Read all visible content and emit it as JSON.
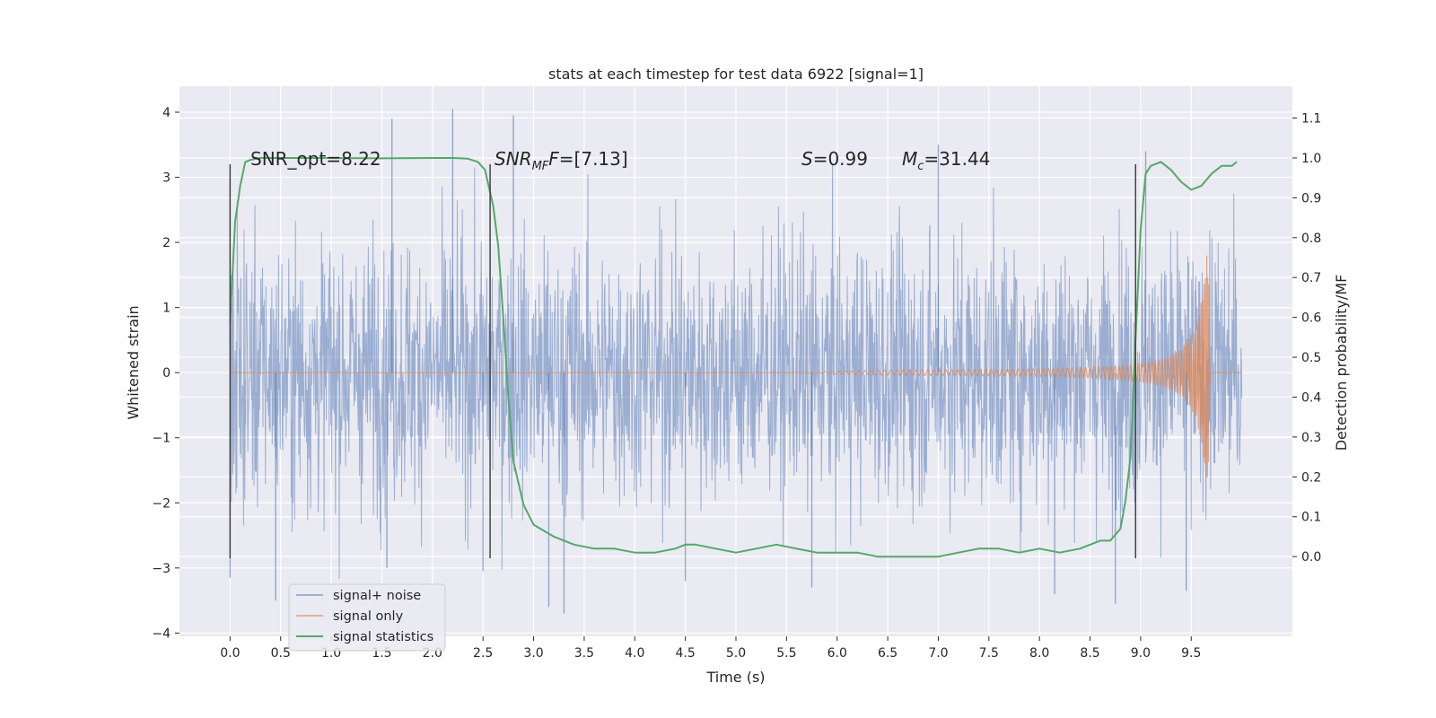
{
  "chart_data": {
    "type": "line",
    "title": "stats at each timestep for test data 6922 [signal=1]",
    "xlabel": "Time (s)",
    "ylabel": "Whitened strain",
    "ylabel_right": "Detection probability/MF",
    "xlim": [
      -0.5,
      10.5
    ],
    "ylim": [
      -4.05,
      4.4
    ],
    "ylim_right": [
      -0.2,
      1.18
    ],
    "x_ticks": [
      0.0,
      0.5,
      1.0,
      1.5,
      2.0,
      2.5,
      3.0,
      3.5,
      4.0,
      4.5,
      5.0,
      5.5,
      6.0,
      6.5,
      7.0,
      7.5,
      8.0,
      8.5,
      9.0,
      9.5
    ],
    "x_tick_labels": [
      "0.0",
      "0.5",
      "1.0",
      "1.5",
      "2.0",
      "2.5",
      "3.0",
      "3.5",
      "4.0",
      "4.5",
      "5.0",
      "5.5",
      "6.0",
      "6.5",
      "7.0",
      "7.5",
      "8.0",
      "8.5",
      "9.0",
      "9.5"
    ],
    "y_ticks": [
      4,
      3,
      2,
      1,
      0,
      -1,
      -2,
      -3,
      -4
    ],
    "y_tick_labels": [
      "4",
      "3",
      "2",
      "1",
      "0",
      "−1",
      "−2",
      "−3",
      "−4"
    ],
    "y_right_ticks": [
      1.1,
      1.0,
      0.9,
      0.8,
      0.7,
      0.6,
      0.5,
      0.4,
      0.3,
      0.2,
      0.1,
      0.0
    ],
    "y_right_tick_labels": [
      "1.1",
      "1.0",
      "0.9",
      "0.8",
      "0.7",
      "0.6",
      "0.5",
      "0.4",
      "0.3",
      "0.2",
      "0.1",
      "0.0"
    ],
    "grid": true,
    "legend_position": "lower-left",
    "legend": [
      "signal+ noise",
      "signal only",
      "signal statistics"
    ],
    "colors": {
      "signal_noise": "#4c72b0",
      "signal_only": "#dd8452",
      "signal_stats": "#55a868",
      "vline": "#444444",
      "background": "#eaeaf2",
      "grid": "#ffffff"
    },
    "annotations": {
      "snr_opt": "SNR_opt=8.22",
      "snr_mf_prefix": "SNR",
      "snr_mf_sub": "MF",
      "snr_mf_value": "=[7.13]",
      "s_label": "S",
      "s_value": "=0.99",
      "mc_label": "M",
      "mc_sub": "c",
      "mc_value": "=31.44"
    },
    "vertical_lines_x": [
      0.0,
      2.57,
      8.95
    ],
    "vertical_lines_y_range": [
      -2.85,
      3.2
    ],
    "signal_noise": {
      "x_range": [
        0.0,
        10.0
      ],
      "min_at_times": [
        {
          "x": 0.0,
          "y": -3.15
        },
        {
          "x": 0.45,
          "y": -3.5
        },
        {
          "x": 1.55,
          "y": -3.0
        },
        {
          "x": 2.5,
          "y": -3.05
        },
        {
          "x": 3.15,
          "y": -3.6
        },
        {
          "x": 3.3,
          "y": -3.7
        },
        {
          "x": 4.5,
          "y": -3.2
        },
        {
          "x": 5.75,
          "y": -3.3
        },
        {
          "x": 8.15,
          "y": -3.4
        },
        {
          "x": 8.75,
          "y": -3.55
        },
        {
          "x": 9.45,
          "y": -3.35
        }
      ],
      "max_at_times": [
        {
          "x": 0.0,
          "y": 2.95
        },
        {
          "x": 1.6,
          "y": 3.9
        },
        {
          "x": 2.2,
          "y": 4.05
        },
        {
          "x": 2.8,
          "y": 3.95
        },
        {
          "x": 7.0,
          "y": 3.5
        },
        {
          "x": 9.05,
          "y": 3.4
        }
      ]
    },
    "signal_only": {
      "x": [
        0.0,
        5.5,
        6.5,
        7.5,
        8.0,
        8.5,
        8.9,
        9.2,
        9.4,
        9.55,
        9.62,
        9.66,
        9.68,
        9.7,
        10.0
      ],
      "amplitude": [
        0.0,
        0.0,
        0.04,
        0.05,
        0.06,
        0.08,
        0.12,
        0.2,
        0.35,
        0.7,
        1.3,
        1.9,
        1.2,
        0.0,
        0.0
      ]
    },
    "signal_statistics": {
      "x": [
        0.0,
        0.05,
        0.1,
        0.15,
        0.2,
        0.3,
        0.5,
        1.0,
        1.5,
        2.0,
        2.2,
        2.35,
        2.45,
        2.52,
        2.6,
        2.65,
        2.7,
        2.75,
        2.8,
        2.9,
        3.0,
        3.2,
        3.4,
        3.6,
        3.8,
        4.0,
        4.2,
        4.4,
        4.5,
        4.6,
        4.8,
        5.0,
        5.2,
        5.4,
        5.6,
        5.8,
        6.0,
        6.2,
        6.4,
        6.6,
        6.8,
        7.0,
        7.2,
        7.4,
        7.6,
        7.8,
        8.0,
        8.2,
        8.4,
        8.6,
        8.7,
        8.8,
        8.85,
        8.9,
        8.95,
        9.0,
        9.05,
        9.1,
        9.2,
        9.3,
        9.4,
        9.5,
        9.6,
        9.7,
        9.8,
        9.9,
        9.95
      ],
      "y": [
        0.59,
        0.84,
        0.93,
        0.99,
        0.995,
        1.0,
        1.0,
        1.0,
        0.999,
        1.0,
        1.0,
        0.998,
        0.99,
        0.97,
        0.88,
        0.78,
        0.6,
        0.4,
        0.24,
        0.13,
        0.08,
        0.05,
        0.03,
        0.02,
        0.02,
        0.01,
        0.01,
        0.02,
        0.03,
        0.03,
        0.02,
        0.01,
        0.02,
        0.03,
        0.02,
        0.01,
        0.01,
        0.01,
        0.0,
        0.0,
        0.0,
        0.0,
        0.01,
        0.02,
        0.02,
        0.01,
        0.02,
        0.01,
        0.02,
        0.04,
        0.04,
        0.07,
        0.14,
        0.25,
        0.55,
        0.82,
        0.96,
        0.98,
        0.99,
        0.97,
        0.94,
        0.92,
        0.93,
        0.96,
        0.98,
        0.98,
        0.99
      ]
    }
  }
}
